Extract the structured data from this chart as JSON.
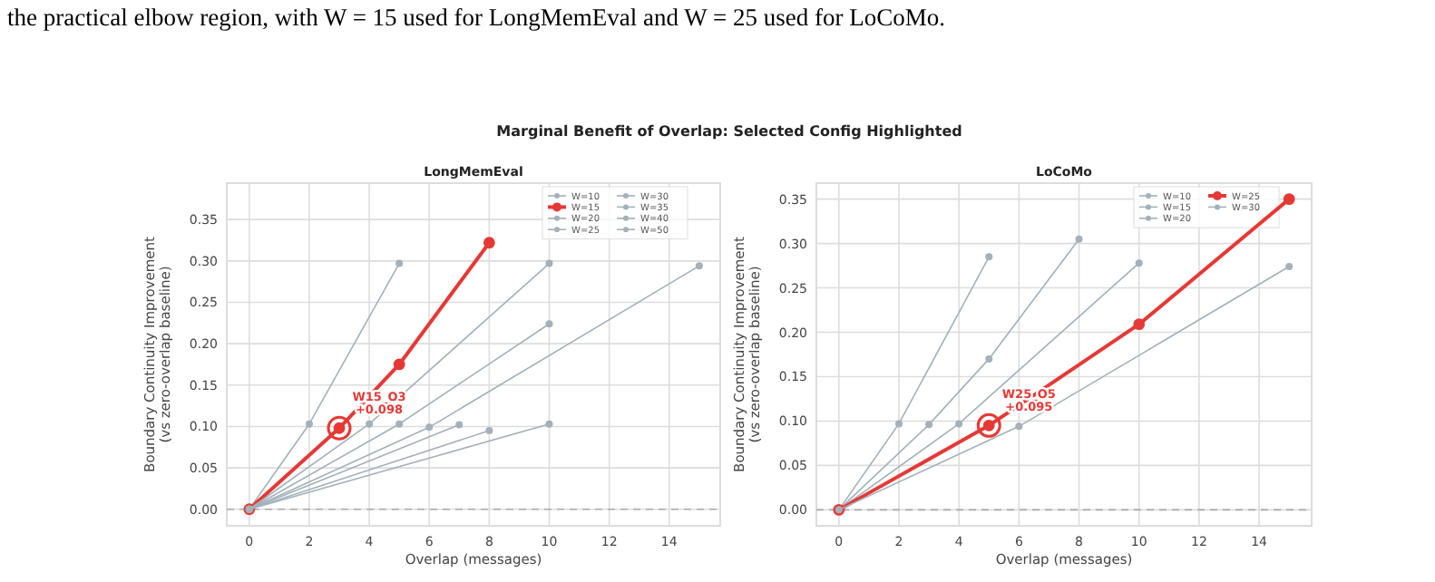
{
  "chart_data": [
    {
      "type": "line",
      "title": "LongMemEval",
      "xlabel": "Overlap (messages)",
      "ylabel": "Boundary Continuity Improvement\n(vs zero-overlap baseline)",
      "xlim": [
        -0.75,
        15.7
      ],
      "ylim": [
        -0.02,
        0.394
      ],
      "xticks": [
        0,
        2,
        4,
        6,
        8,
        10,
        12,
        14
      ],
      "yticks": [
        {
          "value": 0,
          "label": "0.00"
        },
        {
          "value": 0.05,
          "label": "0.05"
        },
        {
          "value": 0.1,
          "label": "0.10"
        },
        {
          "value": 0.15,
          "label": "0.15"
        },
        {
          "value": 0.2,
          "label": "0.20"
        },
        {
          "value": 0.25,
          "label": "0.25"
        },
        {
          "value": 0.3,
          "label": "0.30"
        },
        {
          "value": 0.35,
          "label": "0.35"
        }
      ],
      "grid": true,
      "legend": "top right",
      "marker": "circle",
      "line_style": "solid",
      "series": [
        {
          "name": "W=10",
          "color": "#a3b1ba",
          "x": [
            0,
            2,
            5
          ],
          "values": [
            0,
            0.103,
            0.297
          ]
        },
        {
          "name": "W=15",
          "color": "#e53935",
          "x": [
            0,
            3,
            5,
            8
          ],
          "values": [
            0,
            0.098,
            0.175,
            0.322
          ]
        },
        {
          "name": "W=20",
          "color": "#a3b1ba",
          "x": [
            0,
            4,
            10
          ],
          "values": [
            0,
            0.103,
            0.297
          ]
        },
        {
          "name": "W=25",
          "color": "#a3b1ba",
          "x": [
            0,
            5,
            10
          ],
          "values": [
            0,
            0.103,
            0.224
          ]
        },
        {
          "name": "W=30",
          "color": "#a3b1ba",
          "x": [
            0,
            6,
            15
          ],
          "values": [
            0,
            0.099,
            0.294
          ]
        },
        {
          "name": "W=35",
          "color": "#a3b1ba",
          "x": [
            0,
            7
          ],
          "values": [
            0,
            0.102
          ]
        },
        {
          "name": "W=40",
          "color": "#a3b1ba",
          "x": [
            0,
            8
          ],
          "values": [
            0,
            0.095
          ]
        },
        {
          "name": "W=50",
          "color": "#a3b1ba",
          "x": [
            0,
            10
          ],
          "values": [
            0,
            0.103
          ]
        }
      ],
      "ref_lines": [
        {
          "axis": "y",
          "value": 0,
          "color": "#aaaaaa",
          "line_style": "dashed"
        }
      ],
      "annotations": [
        "the practical elbow region, with W = 15 used for LongMemEval and W = 25 used for LoCoMo.",
        "Marginal Benefit of Overlap: Selected Config Highlighted",
        {
          "text": "W15_O3\n+0.098",
          "x": 3,
          "y": 0.098
        }
      ]
    },
    {
      "type": "line",
      "title": "LoCoMo",
      "xlabel": "Overlap (messages)",
      "ylabel": "Boundary Continuity Improvement\n(vs zero-overlap baseline)",
      "xlim": [
        -0.75,
        15.75
      ],
      "ylim": [
        -0.018,
        0.368
      ],
      "xticks": [
        0,
        2,
        4,
        6,
        8,
        10,
        12,
        14
      ],
      "yticks": [
        {
          "value": 0,
          "label": "0.00"
        },
        {
          "value": 0.05,
          "label": "0.05"
        },
        {
          "value": 0.1,
          "label": "0.10"
        },
        {
          "value": 0.15,
          "label": "0.15"
        },
        {
          "value": 0.2,
          "label": "0.20"
        },
        {
          "value": 0.25,
          "label": "0.25"
        },
        {
          "value": 0.3,
          "label": "0.30"
        },
        {
          "value": 0.35,
          "label": "0.35"
        }
      ],
      "grid": true,
      "legend": "top right",
      "marker": "circle",
      "line_style": "solid",
      "series": [
        {
          "name": "W=10",
          "color": "#a3b1ba",
          "x": [
            0,
            2,
            5
          ],
          "values": [
            0,
            0.097,
            0.285
          ]
        },
        {
          "name": "W=15",
          "color": "#a3b1ba",
          "x": [
            0,
            3,
            5,
            8
          ],
          "values": [
            0,
            0.096,
            0.17,
            0.305
          ]
        },
        {
          "name": "W=20",
          "color": "#a3b1ba",
          "x": [
            0,
            4,
            10
          ],
          "values": [
            0,
            0.097,
            0.278
          ]
        },
        {
          "name": "W=25",
          "color": "#e53935",
          "x": [
            0,
            5,
            10,
            15
          ],
          "values": [
            0,
            0.095,
            0.209,
            0.35
          ]
        },
        {
          "name": "W=30",
          "color": "#a3b1ba",
          "x": [
            0,
            6,
            15
          ],
          "values": [
            0,
            0.094,
            0.274
          ]
        }
      ],
      "ref_lines": [
        {
          "axis": "y",
          "value": 0,
          "color": "#aaaaaa",
          "line_style": "dashed"
        }
      ],
      "annotations": [
        {
          "text": "W25_O5\n+0.095",
          "x": 5,
          "y": 0.095
        }
      ]
    }
  ]
}
